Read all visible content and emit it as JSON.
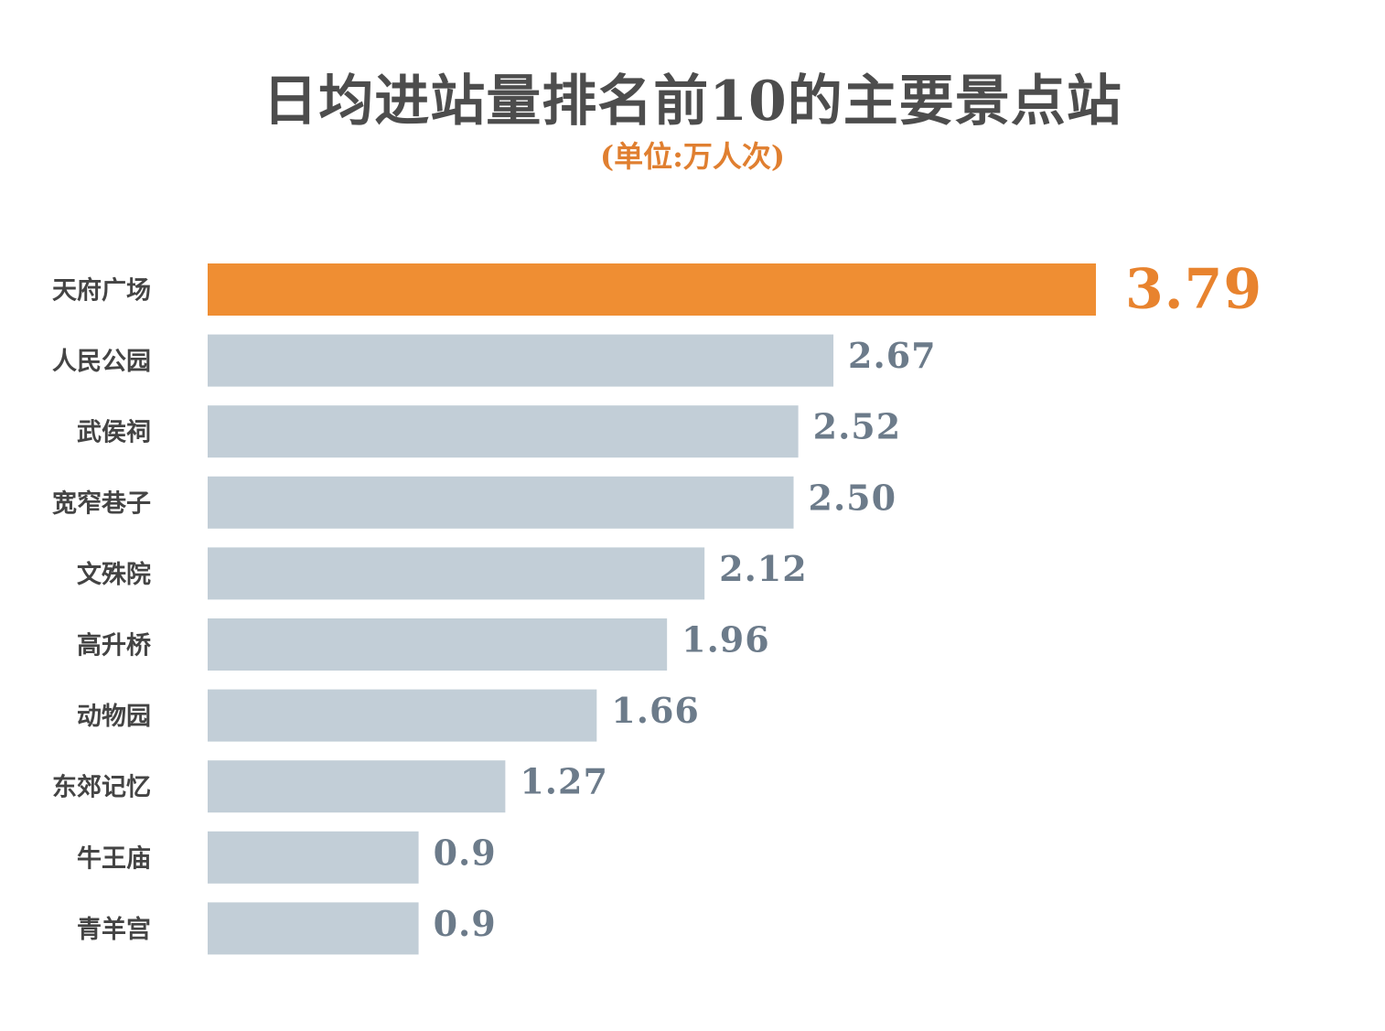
{
  "title": "日均进站量排名前10的主要景点站",
  "subtitle": "(单位:万人次)",
  "colors": {
    "highlight_bar": "#ef8e33",
    "bar": "#c2ced7",
    "title": "#4d4d4d",
    "subtitle": "#e07f30",
    "value_label": "#6c7b8a",
    "highlight_value": "#e8832e",
    "category_label": "#444444"
  },
  "chart_data": {
    "type": "bar",
    "orientation": "horizontal",
    "title": "日均进站量排名前10的主要景点站",
    "subtitle": "(单位:万人次)",
    "xlim": [
      0,
      3.79
    ],
    "grid": false,
    "highlight_index": 0,
    "categories": [
      "天府广场",
      "人民公园",
      "武侯祠",
      "宽窄巷子",
      "文殊院",
      "高升桥",
      "动物园",
      "东郊记忆",
      "牛王庙",
      "青羊宫"
    ],
    "values": [
      3.79,
      2.67,
      2.52,
      2.5,
      2.12,
      1.96,
      1.66,
      1.27,
      0.9,
      0.9
    ],
    "value_labels": [
      "3.79",
      "2.67",
      "2.52",
      "2.50",
      "2.12",
      "1.96",
      "1.66",
      "1.27",
      "0.9",
      "0.9"
    ]
  }
}
